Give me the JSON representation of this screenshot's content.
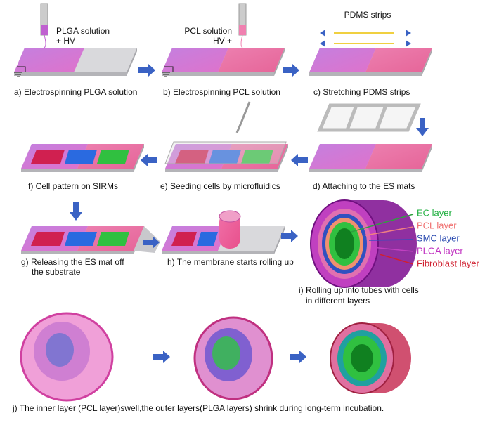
{
  "annotations": {
    "plga_solution": "PLGA solution",
    "hv_left": "+ HV",
    "pcl_solution": "PCL solution",
    "hv_right": "HV +",
    "pdms_strips": "PDMS strips"
  },
  "steps": [
    {
      "lines": [
        "a) Electrospinning PLGA solution"
      ]
    },
    {
      "lines": [
        "b) Electrospinning PCL solution"
      ]
    },
    {
      "lines": [
        "c) Stretching PDMS strips"
      ]
    },
    {
      "lines": [
        "d) Attaching to the ES mats"
      ]
    },
    {
      "lines": [
        "e) Seeding cells by microfluidics"
      ]
    },
    {
      "lines": [
        "f) Cell pattern on SIRMs"
      ]
    },
    {
      "lines": [
        "g) Releasing the ES mat off",
        "the substrate"
      ]
    },
    {
      "lines": [
        "h) The membrane starts rolling up"
      ]
    },
    {
      "lines": [
        "i) Rolling up into tubes with cells",
        "in different layers"
      ]
    },
    {
      "lines": [
        "j) The inner layer (PCL layer)swell,the outer layers(PLGA layers) shrink during long-term incubation."
      ]
    }
  ],
  "layers": [
    "EC layer",
    "PCL layer",
    "SMC layer",
    "PLGA layer",
    "Fibroblast layer"
  ]
}
